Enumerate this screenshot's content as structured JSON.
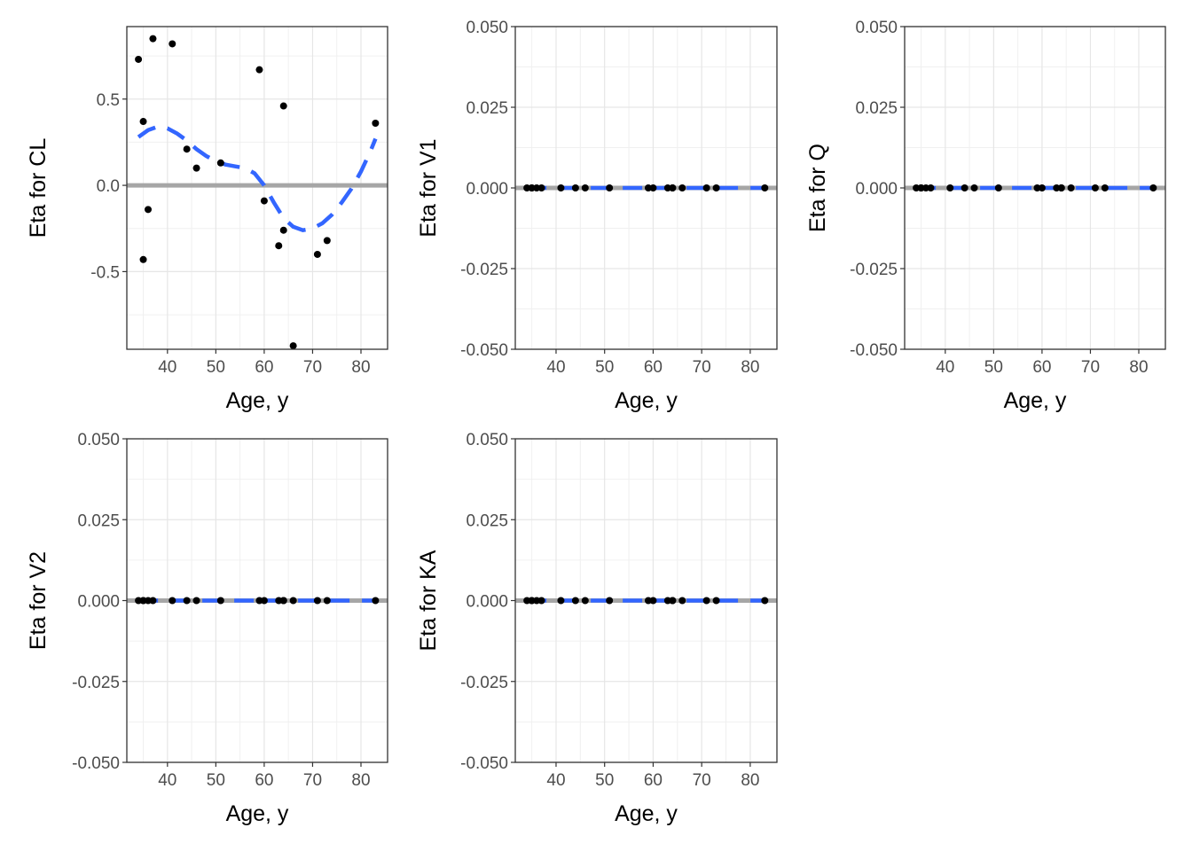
{
  "chart_data": [
    {
      "type": "scatter",
      "title": "",
      "xlabel": "Age, y",
      "ylabel": "Eta for CL",
      "xlim": [
        31.6,
        85.5
      ],
      "ylim": [
        -0.95,
        0.92
      ],
      "xticks": [
        40,
        50,
        60,
        70,
        80
      ],
      "xtick_labels": [
        "40",
        "50",
        "60",
        "70",
        "80"
      ],
      "yticks": [
        -0.5,
        0.0,
        0.5
      ],
      "ytick_labels": [
        "-0.5",
        "0.0",
        "0.5"
      ],
      "x": [
        34,
        35,
        35,
        36,
        37,
        41,
        44,
        46,
        51,
        59,
        60,
        63,
        64,
        64,
        66,
        71,
        73,
        83
      ],
      "y": [
        0.73,
        0.37,
        -0.43,
        -0.14,
        0.85,
        0.82,
        0.21,
        0.1,
        0.13,
        0.67,
        -0.09,
        -0.35,
        -0.26,
        0.46,
        -0.93,
        -0.4,
        -0.32,
        0.36
      ],
      "smooth": {
        "x": [
          34,
          36,
          38,
          40,
          42,
          44,
          46,
          48,
          50,
          52,
          54,
          56,
          58,
          60,
          62,
          64,
          66,
          68,
          70,
          72,
          74,
          76,
          78,
          80,
          82,
          83
        ],
        "y": [
          0.28,
          0.32,
          0.34,
          0.33,
          0.3,
          0.26,
          0.21,
          0.17,
          0.14,
          0.12,
          0.11,
          0.1,
          0.07,
          0.0,
          -0.1,
          -0.19,
          -0.24,
          -0.26,
          -0.25,
          -0.22,
          -0.17,
          -0.1,
          -0.02,
          0.08,
          0.2,
          0.27
        ],
        "color": "#3366ff"
      },
      "reference_line": {
        "y": 0,
        "color": "#a6a6a6"
      },
      "point_color": "#000000",
      "grid": true
    },
    {
      "type": "scatter",
      "title": "",
      "xlabel": "Age, y",
      "ylabel": "Eta for V1",
      "xlim": [
        31.6,
        85.5
      ],
      "ylim": [
        -0.05,
        0.05
      ],
      "xticks": [
        40,
        50,
        60,
        70,
        80
      ],
      "xtick_labels": [
        "40",
        "50",
        "60",
        "70",
        "80"
      ],
      "yticks": [
        -0.05,
        -0.025,
        0,
        0.025,
        0.05
      ],
      "ytick_labels": [
        "-0.050",
        "-0.025",
        "0.000",
        "0.025",
        "0.050"
      ],
      "x": [
        34,
        35,
        35,
        36,
        37,
        41,
        44,
        46,
        51,
        59,
        60,
        63,
        64,
        64,
        66,
        71,
        73,
        83
      ],
      "y": [
        0,
        0,
        0,
        0,
        0,
        0,
        0,
        0,
        0,
        0,
        0,
        0,
        0,
        0,
        0,
        0,
        0,
        0
      ],
      "smooth": {
        "x": [
          34,
          83
        ],
        "y": [
          0,
          0
        ],
        "color": "#3366ff"
      },
      "reference_line": {
        "y": 0,
        "color": "#a6a6a6"
      },
      "point_color": "#000000",
      "grid": true
    },
    {
      "type": "scatter",
      "title": "",
      "xlabel": "Age, y",
      "ylabel": "Eta for Q",
      "xlim": [
        31.6,
        85.5
      ],
      "ylim": [
        -0.05,
        0.05
      ],
      "xticks": [
        40,
        50,
        60,
        70,
        80
      ],
      "xtick_labels": [
        "40",
        "50",
        "60",
        "70",
        "80"
      ],
      "yticks": [
        -0.05,
        -0.025,
        0,
        0.025,
        0.05
      ],
      "ytick_labels": [
        "-0.050",
        "-0.025",
        "0.000",
        "0.025",
        "0.050"
      ],
      "x": [
        34,
        35,
        35,
        36,
        37,
        41,
        44,
        46,
        51,
        59,
        60,
        63,
        64,
        64,
        66,
        71,
        73,
        83
      ],
      "y": [
        0,
        0,
        0,
        0,
        0,
        0,
        0,
        0,
        0,
        0,
        0,
        0,
        0,
        0,
        0,
        0,
        0,
        0
      ],
      "smooth": {
        "x": [
          34,
          83
        ],
        "y": [
          0,
          0
        ],
        "color": "#3366ff"
      },
      "reference_line": {
        "y": 0,
        "color": "#a6a6a6"
      },
      "point_color": "#000000",
      "grid": true
    },
    {
      "type": "scatter",
      "title": "",
      "xlabel": "Age, y",
      "ylabel": "Eta for V2",
      "xlim": [
        31.6,
        85.5
      ],
      "ylim": [
        -0.05,
        0.05
      ],
      "xticks": [
        40,
        50,
        60,
        70,
        80
      ],
      "xtick_labels": [
        "40",
        "50",
        "60",
        "70",
        "80"
      ],
      "yticks": [
        -0.05,
        -0.025,
        0,
        0.025,
        0.05
      ],
      "ytick_labels": [
        "-0.050",
        "-0.025",
        "0.000",
        "0.025",
        "0.050"
      ],
      "x": [
        34,
        35,
        35,
        36,
        37,
        41,
        44,
        46,
        51,
        59,
        60,
        63,
        64,
        64,
        66,
        71,
        73,
        83
      ],
      "y": [
        0,
        0,
        0,
        0,
        0,
        0,
        0,
        0,
        0,
        0,
        0,
        0,
        0,
        0,
        0,
        0,
        0,
        0
      ],
      "smooth": {
        "x": [
          34,
          83
        ],
        "y": [
          0,
          0
        ],
        "color": "#3366ff"
      },
      "reference_line": {
        "y": 0,
        "color": "#a6a6a6"
      },
      "point_color": "#000000",
      "grid": true
    },
    {
      "type": "scatter",
      "title": "",
      "xlabel": "Age, y",
      "ylabel": "Eta for KA",
      "xlim": [
        31.6,
        85.5
      ],
      "ylim": [
        -0.05,
        0.05
      ],
      "xticks": [
        40,
        50,
        60,
        70,
        80
      ],
      "xtick_labels": [
        "40",
        "50",
        "60",
        "70",
        "80"
      ],
      "yticks": [
        -0.05,
        -0.025,
        0,
        0.025,
        0.05
      ],
      "ytick_labels": [
        "-0.050",
        "-0.025",
        "0.000",
        "0.025",
        "0.050"
      ],
      "x": [
        34,
        35,
        35,
        36,
        37,
        41,
        44,
        46,
        51,
        59,
        60,
        63,
        64,
        64,
        66,
        71,
        73,
        83
      ],
      "y": [
        0,
        0,
        0,
        0,
        0,
        0,
        0,
        0,
        0,
        0,
        0,
        0,
        0,
        0,
        0,
        0,
        0,
        0
      ],
      "smooth": {
        "x": [
          34,
          83
        ],
        "y": [
          0,
          0
        ],
        "color": "#3366ff"
      },
      "reference_line": {
        "y": 0,
        "color": "#a6a6a6"
      },
      "point_color": "#000000",
      "grid": true
    }
  ]
}
